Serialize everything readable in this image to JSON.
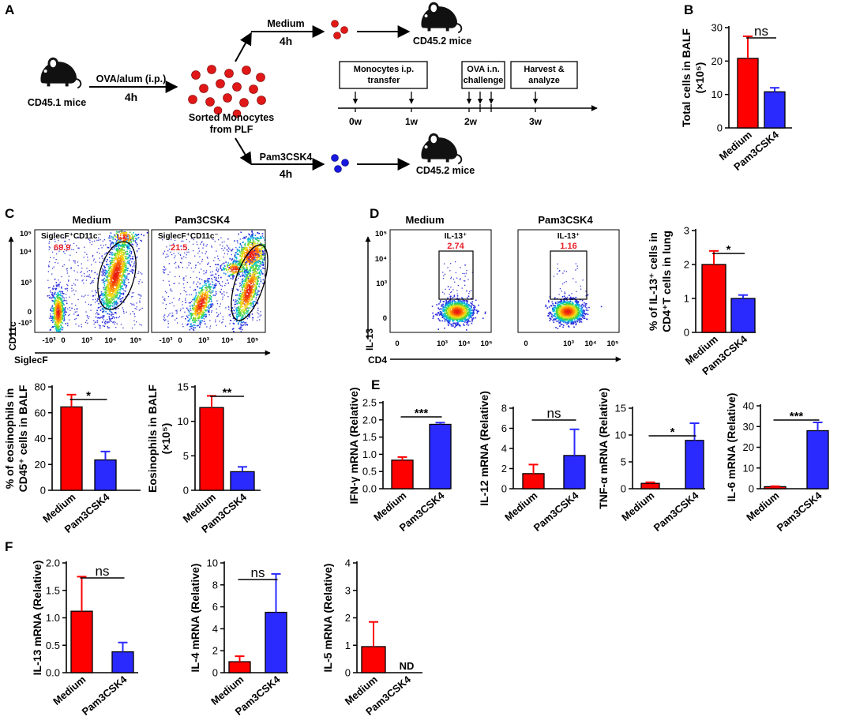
{
  "colors": {
    "medium": "#ff0000",
    "pam": "#2a2aff",
    "ink": "#000000",
    "gate_value": "#e8202a"
  },
  "panel_letters": [
    "A",
    "B",
    "C",
    "D",
    "E",
    "F"
  ],
  "schematic": {
    "donor": "CD45.1 mice",
    "injection": "OVA/alum (i.p.)",
    "injection_time": "4h",
    "sorted_line1": "Sorted Monocytes",
    "sorted_line2": "from PLF",
    "medium": "Medium",
    "medium_time": "4h",
    "pam": "Pam3CSK4",
    "pam_time": "4h",
    "recipient_top": "CD45.2 mice",
    "recipient_bottom": "CD45.2 mice",
    "boxes": [
      {
        "line1": "Monocytes i.p.",
        "line2": "transfer"
      },
      {
        "line1": "OVA i.n.",
        "line2": "challenge"
      },
      {
        "line1": "Harvest &",
        "line2": "analyze"
      }
    ],
    "timeline": [
      "0w",
      "1w",
      "2w",
      "3w"
    ]
  },
  "flow_C": {
    "titles": [
      "Medium",
      "Pam3CSK4"
    ],
    "gate_label": "SiglecF⁺CD11c⁻",
    "gate_values": [
      "69.9",
      "21.5"
    ],
    "x_axis_label": "SiglecF",
    "y_axis_label": "CD11c",
    "x_ticks": [
      "-10³",
      "0",
      "10³",
      "10⁴",
      "10⁵"
    ],
    "y_ticks": [
      "10⁵",
      "10⁴",
      "10³",
      "0",
      "-10³"
    ]
  },
  "flow_D": {
    "titles": [
      "Medium",
      "Pam3CSK4"
    ],
    "gate_label": "IL-13⁺",
    "gate_values": [
      "2.74",
      "1.16"
    ],
    "x_axis_label": "CD4",
    "y_axis_label": "IL-13",
    "x_ticks": [
      "0",
      "10³",
      "10⁴",
      "10⁵"
    ],
    "y_ticks": [
      "10⁵",
      "10⁴",
      "10³",
      "0"
    ]
  },
  "chart_data": [
    {
      "id": "B",
      "type": "bar",
      "categories": [
        "Medium",
        "Pam3CSK4"
      ],
      "values": [
        20.8,
        10.8
      ],
      "errors": [
        6.6,
        1.2
      ],
      "ylabel": "Total cells in BALF (×10⁵)",
      "ylabel_lines": [
        "Total cells in BALF",
        "(×10⁵)"
      ],
      "ylim": [
        0,
        30
      ],
      "yticks": [
        0,
        10,
        20,
        30
      ],
      "sig": "ns"
    },
    {
      "id": "C1",
      "type": "bar",
      "categories": [
        "Medium",
        "Pam3CSK4"
      ],
      "values": [
        64.5,
        23.5
      ],
      "errors": [
        9.5,
        6.5
      ],
      "ylabel": "% of eosinophils in CD45⁺ cells in BALF",
      "ylabel_lines": [
        "% of eosinophils in",
        "CD45⁺ cells in BALF"
      ],
      "ylim": [
        0,
        80
      ],
      "yticks": [
        0,
        20,
        40,
        60,
        80
      ],
      "sig": "*"
    },
    {
      "id": "C2",
      "type": "bar",
      "categories": [
        "Medium",
        "Pam3CSK4"
      ],
      "values": [
        12.0,
        2.7
      ],
      "errors": [
        1.7,
        0.7
      ],
      "ylabel": "Eosinophils in BALF (×10⁵)",
      "ylabel_lines": [
        "Eosinophils in BALF",
        "(×10⁵)"
      ],
      "ylim": [
        0,
        15
      ],
      "yticks": [
        0,
        5,
        10,
        15
      ],
      "sig": "**"
    },
    {
      "id": "D",
      "type": "bar",
      "categories": [
        "Medium",
        "Pam3CSK4"
      ],
      "values": [
        2.0,
        1.0
      ],
      "errors": [
        0.4,
        0.1
      ],
      "ylabel": "% of IL-13⁺ cells in CD4⁺T cells in lung",
      "ylabel_lines": [
        "% of IL-13⁺ cells in",
        "CD4⁺T cells in lung"
      ],
      "ylim": [
        0,
        3
      ],
      "yticks": [
        0,
        1,
        2,
        3
      ],
      "sig": "*"
    },
    {
      "id": "E1",
      "type": "bar",
      "categories": [
        "Medium",
        "Pam3CSK4"
      ],
      "values": [
        0.83,
        1.87
      ],
      "errors": [
        0.09,
        0.05
      ],
      "ylabel": "IFN-γ mRNA (Relative)",
      "ylabel_lines": [
        "IFN-γ mRNA (Relative)"
      ],
      "ylim": [
        0,
        2.5
      ],
      "yticks": [
        0.0,
        0.5,
        1.0,
        1.5,
        2.0,
        2.5
      ],
      "ytick_labels": [
        "0.0",
        "0.5",
        "1.0",
        "1.5",
        "2.0",
        "2.5"
      ],
      "sig": "***"
    },
    {
      "id": "E2",
      "type": "bar",
      "categories": [
        "Medium",
        "Pam3CSK4"
      ],
      "values": [
        1.5,
        3.3
      ],
      "errors": [
        0.9,
        2.6
      ],
      "ylabel": "IL-12 mRNA (Relative)",
      "ylabel_lines": [
        "IL-12 mRNA (Relative)"
      ],
      "ylim": [
        0,
        8
      ],
      "yticks": [
        0,
        2,
        4,
        6,
        8
      ],
      "sig": "ns"
    },
    {
      "id": "E3",
      "type": "bar",
      "categories": [
        "Medium",
        "Pam3CSK4"
      ],
      "values": [
        1.0,
        9.0
      ],
      "errors": [
        0.2,
        3.2
      ],
      "ylabel": "TNF-α mRNA (Relative)",
      "ylabel_lines": [
        "TNF-α mRNA (Relative)"
      ],
      "ylim": [
        0,
        15
      ],
      "yticks": [
        0,
        5,
        10,
        15
      ],
      "sig": "*"
    },
    {
      "id": "E4",
      "type": "bar",
      "categories": [
        "Medium",
        "Pam3CSK4"
      ],
      "values": [
        1.0,
        28.0
      ],
      "errors": [
        0.2,
        4.0
      ],
      "ylabel": "IL-6 mRNA (Relative)",
      "ylabel_lines": [
        "IL-6 mRNA (Relative)"
      ],
      "ylim": [
        0,
        40
      ],
      "yticks": [
        0,
        10,
        20,
        30,
        40
      ],
      "sig": "***"
    },
    {
      "id": "F1",
      "type": "bar",
      "categories": [
        "Medium",
        "Pam3CSK4"
      ],
      "values": [
        1.12,
        0.38
      ],
      "errors": [
        0.63,
        0.17
      ],
      "ylabel": "IL-13 mRNA (Relative)",
      "ylabel_lines": [
        "IL-13 mRNA (Relative)"
      ],
      "ylim": [
        0,
        2.0
      ],
      "yticks": [
        0.0,
        0.5,
        1.0,
        1.5,
        2.0
      ],
      "ytick_labels": [
        "0.0",
        "0.5",
        "1.0",
        "1.5",
        "2.0"
      ],
      "sig": "ns"
    },
    {
      "id": "F2",
      "type": "bar",
      "categories": [
        "Medium",
        "Pam3CSK4"
      ],
      "values": [
        1.0,
        5.5
      ],
      "errors": [
        0.5,
        3.5
      ],
      "ylabel": "IL-4 mRNA (Relative)",
      "ylabel_lines": [
        "IL-4 mRNA (Relative)"
      ],
      "ylim": [
        0,
        10
      ],
      "yticks": [
        0,
        2,
        4,
        6,
        8,
        10
      ],
      "sig": "ns"
    },
    {
      "id": "F3",
      "type": "bar",
      "categories": [
        "Medium",
        "Pam3CSK4"
      ],
      "values": [
        0.95,
        null
      ],
      "errors": [
        0.9,
        null
      ],
      "ylabel": "IL-5 mRNA (Relative)",
      "ylabel_lines": [
        "IL-5 mRNA (Relative)"
      ],
      "ylim": [
        0,
        4
      ],
      "yticks": [
        0,
        1,
        2,
        3,
        4
      ],
      "sig": "",
      "na_label": "ND"
    }
  ]
}
